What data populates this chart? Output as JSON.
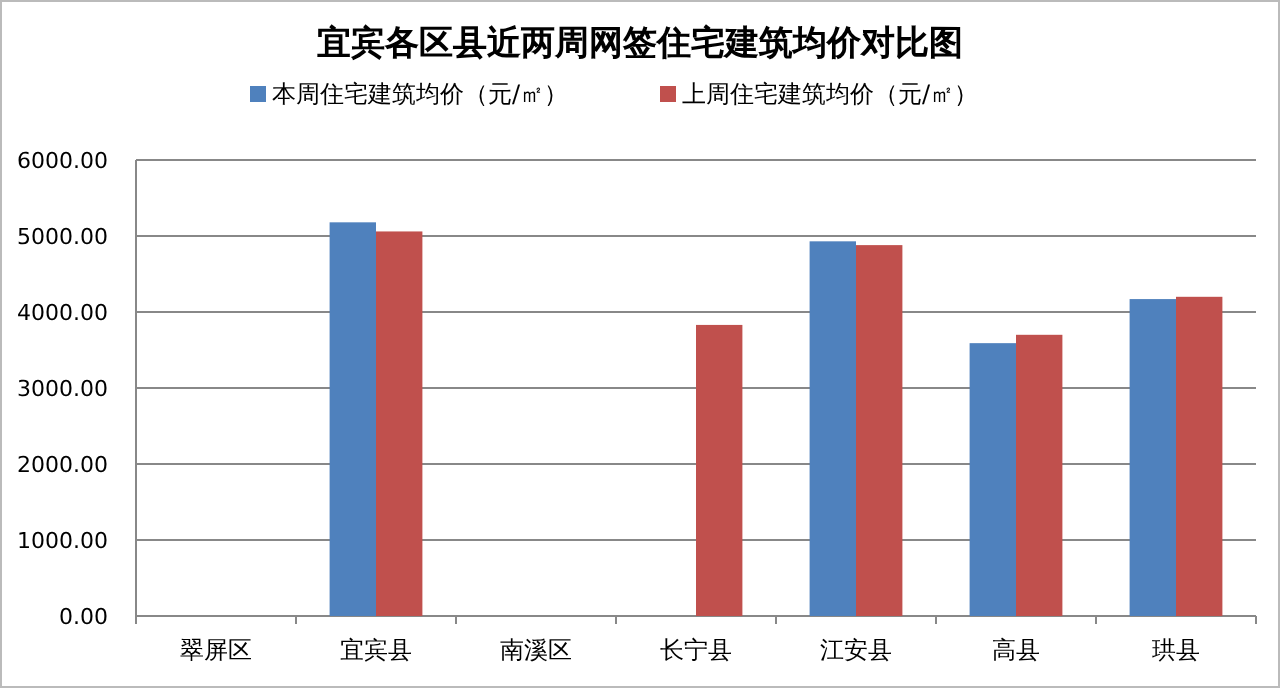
{
  "chart_data": {
    "type": "bar",
    "title": "宜宾各区县近两周网签住宅建筑均价对比图",
    "categories": [
      "翠屏区",
      "宜宾县",
      "南溪区",
      "长宁县",
      "江安县",
      "高县",
      "珙县"
    ],
    "series": [
      {
        "name": "本周住宅建筑均价（元/㎡）",
        "color": "#4f81bd",
        "values": [
          null,
          5180,
          null,
          null,
          4930,
          3590,
          4170
        ]
      },
      {
        "name": "上周住宅建筑均价（元/㎡）",
        "color": "#c0504d",
        "values": [
          null,
          5060,
          null,
          3830,
          4880,
          3700,
          4200
        ]
      }
    ],
    "ylim": [
      0,
      6000
    ],
    "yticks": [
      {
        "value": 0,
        "label": "0.00"
      },
      {
        "value": 1000,
        "label": "1000.00"
      },
      {
        "value": 2000,
        "label": "2000.00"
      },
      {
        "value": 3000,
        "label": "3000.00"
      },
      {
        "value": 4000,
        "label": "4000.00"
      },
      {
        "value": 5000,
        "label": "5000.00"
      },
      {
        "value": 6000,
        "label": "6000.00"
      }
    ],
    "grid": "y",
    "legend": "top"
  }
}
